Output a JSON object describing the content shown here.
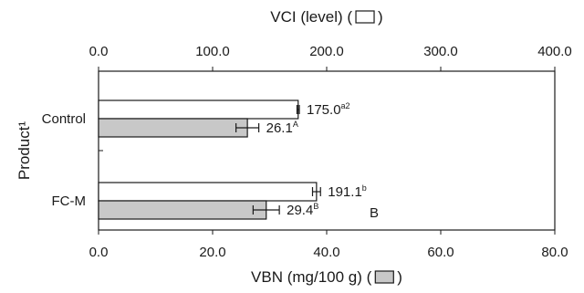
{
  "chart_data": {
    "type": "bar",
    "orientation": "horizontal",
    "categories": [
      "Control",
      "FC-M"
    ],
    "series": [
      {
        "name": "VCI (level)",
        "axis": "top",
        "values": [
          175.0,
          191.1
        ],
        "errors": [
          1.0,
          3.5
        ],
        "labels": [
          "175.0",
          "191.1"
        ],
        "superscripts": [
          "a2",
          "b"
        ],
        "fill": "#ffffff"
      },
      {
        "name": "VBN (mg/100 g)",
        "axis": "bottom",
        "values": [
          26.1,
          29.4
        ],
        "errors": [
          2.0,
          2.3
        ],
        "labels": [
          "26.1",
          "29.4"
        ],
        "superscripts": [
          "A",
          "B"
        ],
        "fill": "#c8c8c8"
      }
    ],
    "x_top": {
      "label": "VCI (level) (",
      "label_end": ")",
      "range": [
        0,
        400
      ],
      "ticks": [
        "0.0",
        "100.0",
        "200.0",
        "300.0",
        "400.0"
      ]
    },
    "x_bottom": {
      "label": "VBN (mg/100 g) (",
      "label_end": ")",
      "range": [
        0,
        80
      ],
      "ticks": [
        "0.0",
        "20.0",
        "40.0",
        "60.0",
        "80.0"
      ]
    },
    "ylabel": "Product¹",
    "annotations": [
      "B"
    ],
    "grid": false,
    "colors": {
      "bar_outline": "#1a1a1a",
      "vci_fill": "#ffffff",
      "vbn_fill": "#c8c8c8"
    }
  }
}
